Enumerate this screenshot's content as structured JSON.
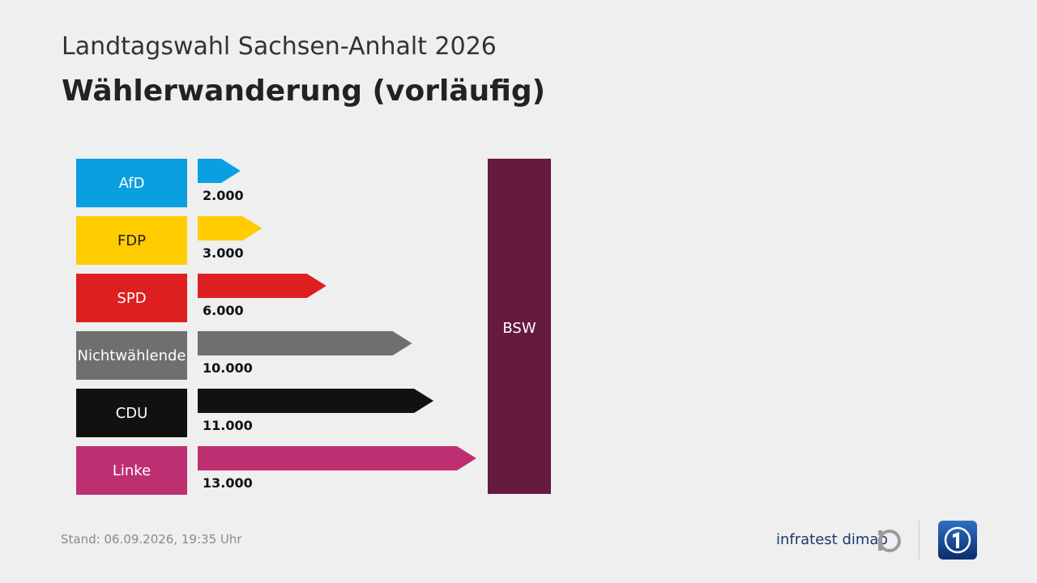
{
  "header": {
    "supertitle": "Landtagswahl Sachsen-Anhalt 2026",
    "title": "Wählerwanderung (vorläufig)"
  },
  "chart_data": {
    "type": "bar",
    "orientation": "horizontal",
    "target": {
      "label": "BSW",
      "color": "#661a3f"
    },
    "categories": [
      "AfD",
      "FDP",
      "SPD",
      "Nichtwählende",
      "CDU",
      "Linke"
    ],
    "values": [
      2000,
      3000,
      6000,
      10000,
      11000,
      13000
    ],
    "value_labels": [
      "2.000",
      "3.000",
      "6.000",
      "10.000",
      "11.000",
      "13.000"
    ],
    "colors": [
      "#0a9fe0",
      "#ffcc00",
      "#dd1f1f",
      "#6f6f6f",
      "#111111",
      "#be2f72"
    ],
    "title": "Wählerwanderung (vorläufig)",
    "xlabel": "",
    "ylabel": "",
    "grid": false,
    "legend": "none"
  },
  "footer": {
    "stand_label": "Stand:",
    "stand_value": "06.09.2026, 19:35 Uhr",
    "brand": "infratest dimap"
  }
}
